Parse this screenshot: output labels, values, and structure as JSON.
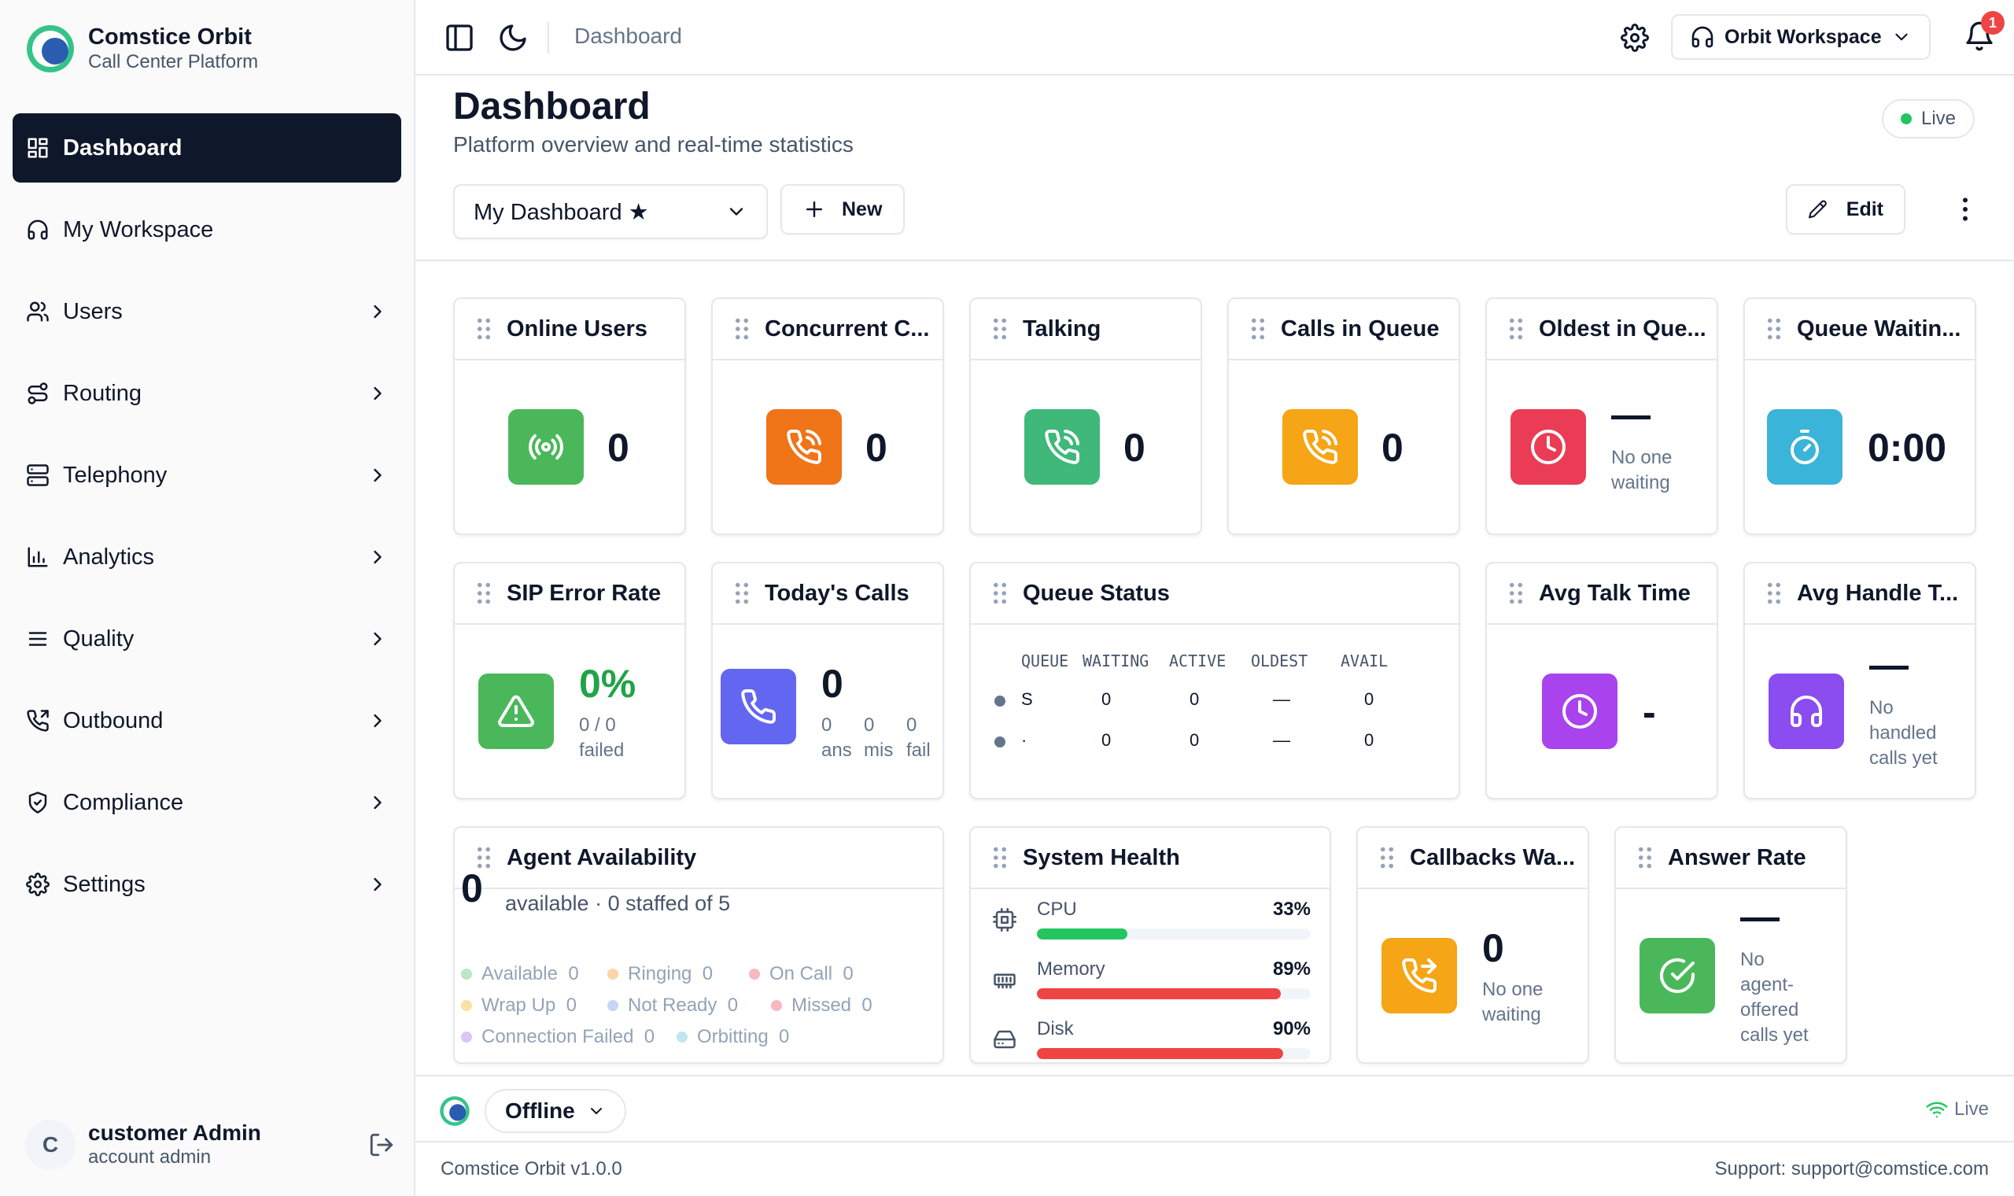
{
  "brand": {
    "name": "Comstice Orbit",
    "subtitle": "Call Center Platform"
  },
  "sidebar": {
    "items": [
      {
        "label": "Dashboard",
        "icon": "dashboard-icon",
        "active": true
      },
      {
        "label": "My Workspace",
        "icon": "headset-icon"
      },
      {
        "label": "Users",
        "icon": "users-icon"
      },
      {
        "label": "Routing",
        "icon": "routing-icon"
      },
      {
        "label": "Telephony",
        "icon": "server-icon"
      },
      {
        "label": "Analytics",
        "icon": "bar-chart-icon"
      },
      {
        "label": "Quality",
        "icon": "list-icon"
      },
      {
        "label": "Outbound",
        "icon": "phone-outgoing-icon"
      },
      {
        "label": "Compliance",
        "icon": "shield-check-icon"
      },
      {
        "label": "Settings",
        "icon": "gear-icon"
      }
    ],
    "user": {
      "initial": "C",
      "name": "customer Admin",
      "role": "account admin"
    }
  },
  "topbar": {
    "title": "Dashboard",
    "workspace": "Orbit Workspace",
    "notifications": "1"
  },
  "page": {
    "title": "Dashboard",
    "subtitle": "Platform overview and real-time statistics",
    "live": "Live",
    "dashboard_select": "My Dashboard ★",
    "new_label": "New",
    "edit_label": "Edit"
  },
  "cards": {
    "online_users": {
      "title": "Online Users",
      "value": "0",
      "color": "#4ab85a"
    },
    "concurrent": {
      "title": "Concurrent C...",
      "value": "0",
      "color": "#f07418"
    },
    "talking": {
      "title": "Talking",
      "value": "0",
      "color": "#3fb87a"
    },
    "calls_queue": {
      "title": "Calls in Queue",
      "value": "0",
      "color": "#f5a515"
    },
    "oldest": {
      "title": "Oldest in Que...",
      "value": "—",
      "sub1": "No one",
      "sub2": "waiting",
      "color": "#ea3d55"
    },
    "queue_wait": {
      "title": "Queue Waitin...",
      "value": "0:00",
      "color": "#3ab4d8"
    },
    "sip_error": {
      "title": "SIP Error Rate",
      "value": "0%",
      "sub1": "0 / 0",
      "sub2": "failed",
      "color": "#4ab85a",
      "value_color": "#22a34a"
    },
    "todays_calls": {
      "title": "Today's Calls",
      "value": "0",
      "ans_n": "0",
      "mis_n": "0",
      "fail_n": "0",
      "ans": "ans",
      "mis": "mis",
      "fail": "fail",
      "color": "#6366f1"
    },
    "queue_status": {
      "title": "Queue Status",
      "headers": [
        "QUEUE",
        "WAITING",
        "ACTIVE",
        "OLDEST",
        "AVAIL"
      ],
      "rows": [
        {
          "queue": "S",
          "waiting": "0",
          "active": "0",
          "oldest": "—",
          "avail": "0"
        },
        {
          "queue": "·",
          "waiting": "0",
          "active": "0",
          "oldest": "—",
          "avail": "0"
        }
      ]
    },
    "avg_talk": {
      "title": "Avg Talk Time",
      "value": "-",
      "color": "#a843ee"
    },
    "avg_handle": {
      "title": "Avg Handle T...",
      "value": "—",
      "sub1": "No",
      "sub2": "handled",
      "sub3": "calls yet",
      "color": "#8b4cf0"
    },
    "agent_avail": {
      "title": "Agent Availability",
      "big": "0",
      "summary": "available · 0 staffed of 5",
      "legend": [
        {
          "label": "Available",
          "count": "0",
          "color": "#bbe7c4"
        },
        {
          "label": "Ringing",
          "count": "0",
          "color": "#fbd5a7"
        },
        {
          "label": "On Call",
          "count": "0",
          "color": "#f8b9c0"
        },
        {
          "label": "Wrap Up",
          "count": "0",
          "color": "#fbe2a0"
        },
        {
          "label": "Not Ready",
          "count": "0",
          "color": "#c5d6f8"
        },
        {
          "label": "Missed",
          "count": "0",
          "color": "#f8b9c0"
        },
        {
          "label": "Connection Failed",
          "count": "0",
          "color": "#d9c6f8"
        },
        {
          "label": "Orbitting",
          "count": "0",
          "color": "#bfe6f1"
        }
      ]
    },
    "system_health": {
      "title": "System Health",
      "rows": [
        {
          "label": "CPU",
          "value": "33%",
          "percent": 33,
          "color": "#22c55e"
        },
        {
          "label": "Memory",
          "value": "89%",
          "percent": 89,
          "color": "#ef4444"
        },
        {
          "label": "Disk",
          "value": "90%",
          "percent": 90,
          "color": "#ef4444"
        }
      ]
    },
    "callbacks": {
      "title": "Callbacks Wa...",
      "value": "0",
      "sub1": "No one",
      "sub2": "waiting",
      "color": "#f5a515"
    },
    "answer_rate": {
      "title": "Answer Rate",
      "value": "—",
      "sub1": "No",
      "sub2": "agent-",
      "sub3": "offered",
      "sub4": "calls yet",
      "color": "#4ab85a"
    }
  },
  "statusbar": {
    "status": "Offline",
    "live": "Live"
  },
  "footer": {
    "version": "Comstice Orbit v1.0.0",
    "support": "Support: support@comstice.com"
  }
}
